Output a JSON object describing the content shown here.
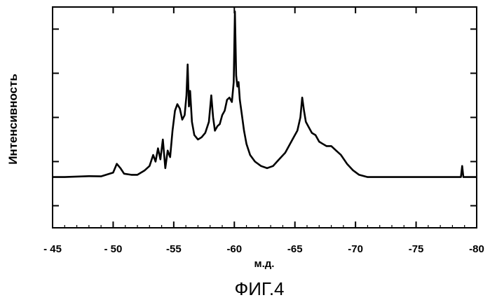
{
  "figure": {
    "caption": "ФИГ.4"
  },
  "chart_data": {
    "type": "line",
    "title": "",
    "xlabel": "м.д.",
    "ylabel": "Интенсивность",
    "xlim": [
      -45,
      -80
    ],
    "x_reversed": true,
    "ylim": [
      0,
      100
    ],
    "y_tick_labels_shown": false,
    "y_ticks": [
      10,
      30,
      50,
      70,
      90
    ],
    "grid": false,
    "x_ticks": [
      {
        "value": -45,
        "label": "- 45"
      },
      {
        "value": -50,
        "label": "- 50"
      },
      {
        "value": -55,
        "label": "-55"
      },
      {
        "value": -60,
        "label": "-60"
      },
      {
        "value": -65,
        "label": "-65"
      },
      {
        "value": -70,
        "label": "-70"
      },
      {
        "value": -75,
        "label": "-75"
      },
      {
        "value": -80,
        "label": "-80"
      }
    ],
    "series": [
      {
        "x": [
          -45,
          -46,
          -47,
          -48,
          -49,
          -50,
          -50.3,
          -50.6,
          -50.9,
          -51.5,
          -52,
          -52.3,
          -52.6,
          -53,
          -53.3,
          -53.5,
          -53.7,
          -53.9,
          -54.1,
          -54.3,
          -54.5,
          -54.7,
          -54.9,
          -55.1,
          -55.3,
          -55.5,
          -55.7,
          -55.9,
          -56.05,
          -56.15,
          -56.25,
          -56.35,
          -56.5,
          -56.7,
          -57,
          -57.3,
          -57.6,
          -57.9,
          -58.1,
          -58.25,
          -58.4,
          -58.6,
          -58.8,
          -59.0,
          -59.2,
          -59.4,
          -59.6,
          -59.8,
          -59.95,
          -60.05,
          -60.15,
          -60.25,
          -60.35,
          -60.45,
          -60.6,
          -60.8,
          -61.0,
          -61.3,
          -61.7,
          -62.2,
          -62.7,
          -63.2,
          -63.7,
          -64.2,
          -64.6,
          -64.9,
          -65.2,
          -65.45,
          -65.6,
          -65.75,
          -65.9,
          -66.1,
          -66.4,
          -66.7,
          -67.0,
          -67.3,
          -67.6,
          -68.0,
          -68.4,
          -68.8,
          -69.3,
          -69.8,
          -70.3,
          -71,
          -72,
          -73,
          -74,
          -75,
          -76,
          -77,
          -78,
          -78.7,
          -78.8,
          -78.9,
          -79.2,
          -79.5,
          -80
        ],
        "y": [
          23,
          23,
          23.2,
          23.4,
          23.3,
          25,
          29,
          27,
          24.5,
          24,
          24,
          25,
          26,
          28,
          33,
          30,
          36,
          31,
          40,
          27,
          35,
          32,
          44,
          53,
          56,
          54,
          49,
          51,
          60,
          74,
          55,
          62,
          48,
          42,
          40,
          41,
          43,
          48,
          60,
          50,
          44,
          46,
          47,
          51,
          53,
          58,
          59,
          57,
          66,
          98,
          69,
          64,
          66,
          58,
          52,
          44,
          38,
          33,
          30,
          28,
          27,
          28,
          31,
          34,
          38,
          41,
          44,
          50,
          59,
          53,
          48,
          46,
          43,
          42,
          39,
          38,
          37,
          37,
          35,
          33,
          29,
          26,
          24,
          23,
          23,
          23,
          23,
          23,
          23,
          23,
          23,
          23,
          28,
          23,
          23,
          23,
          23
        ]
      }
    ]
  }
}
